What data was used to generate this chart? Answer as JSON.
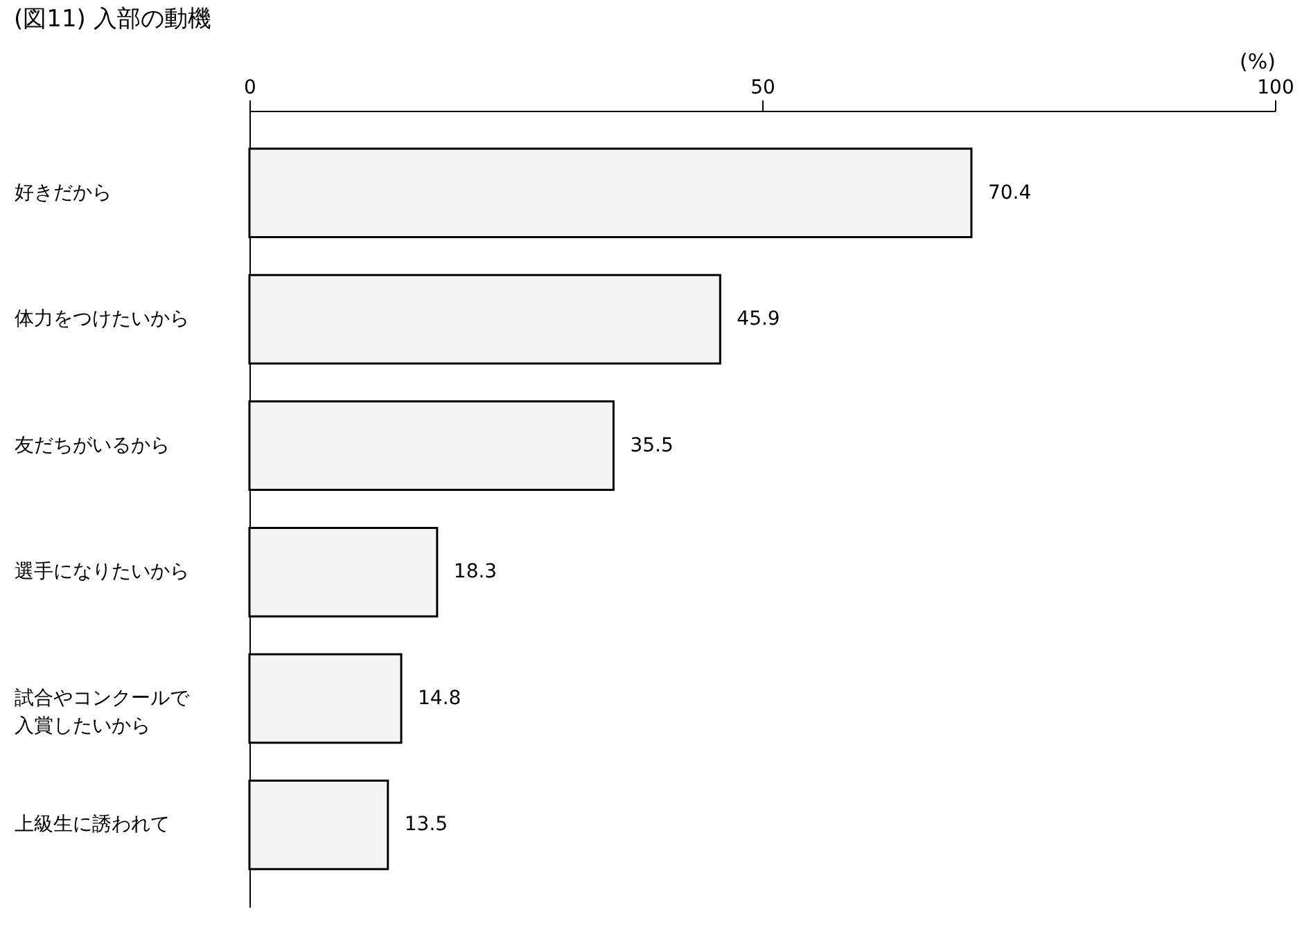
{
  "chart_data": {
    "type": "bar",
    "orientation": "horizontal",
    "title": "(図11) 入部の動機",
    "xlabel": "(%)",
    "categories": [
      "好きだから",
      "体力をつけたいから",
      "友だちがいるから",
      "選手になりたいから",
      "試合やコンクールで入賞したいから",
      "上級生に誘われて"
    ],
    "values": [
      70.4,
      45.9,
      35.5,
      18.3,
      14.8,
      13.5
    ],
    "color": "#f4f4f4",
    "xlim": [
      0,
      100
    ],
    "xticks": [
      0,
      50,
      100
    ],
    "grid": false,
    "data_labels": true
  }
}
